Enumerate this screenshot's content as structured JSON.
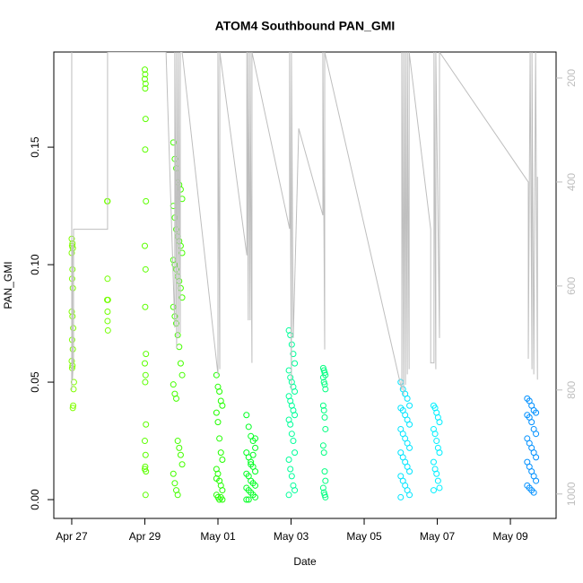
{
  "chart_data": {
    "type": "scatter",
    "title": "ATOM4 Southbound PAN_GMI",
    "xlabel": "Date",
    "ylabel": "PAN_GMI",
    "xlim": [
      -0.49,
      13.25
    ],
    "xticks": [
      {
        "value": 0,
        "label": "Apr 27"
      },
      {
        "value": 2,
        "label": "Apr 29"
      },
      {
        "value": 4,
        "label": "May 01"
      },
      {
        "value": 6,
        "label": "May 03"
      },
      {
        "value": 8,
        "label": "May 05"
      },
      {
        "value": 10,
        "label": "May 07"
      },
      {
        "value": 12,
        "label": "May 09"
      }
    ],
    "ylim": [
      -0.008,
      0.1905
    ],
    "yticks": [
      {
        "value": 0,
        "label": "0.00"
      },
      0.05,
      {
        "value": 0.1,
        "label": "0.10"
      },
      0.15
    ],
    "y2lim": [
      1047,
      150
    ],
    "y2ticks": [
      200,
      400,
      600,
      800,
      1000
    ],
    "series": [
      {
        "color": "#80ff00",
        "x": [
          0,
          0.02,
          0.01,
          0.03,
          0,
          0.02,
          0.01,
          0.03,
          0,
          0.02,
          0.04,
          0.01,
          0.03,
          0,
          0.02,
          0.01,
          0.04,
          0.03,
          0.05,
          0.06
        ],
        "values": [
          0.111,
          0.109,
          0.108,
          0.107,
          0.105,
          0.098,
          0.094,
          0.09,
          0.08,
          0.078,
          0.073,
          0.068,
          0.064,
          0.059,
          0.057,
          0.056,
          0.04,
          0.039,
          0.047,
          0.05
        ]
      },
      {
        "color": "#73ff00",
        "x": [
          0.97,
          0.98,
          0.98,
          0.97,
          0.99,
          0.98,
          0.98,
          0.99
        ],
        "values": [
          0.127,
          0.127,
          0.094,
          0.085,
          0.085,
          0.08,
          0.076,
          0.072
        ]
      },
      {
        "color": "#5cff00",
        "x": [
          2.0,
          2.01,
          2.0,
          2.02,
          2.01,
          2.02,
          2.01,
          2.03,
          2.0,
          2.02,
          2.01,
          2.03,
          2.0,
          2.02,
          2.01,
          2.03,
          2.0,
          2.02,
          2.01,
          2.0,
          2.03,
          2.02
        ],
        "values": [
          0.183,
          0.181,
          0.179,
          0.177,
          0.175,
          0.162,
          0.149,
          0.127,
          0.108,
          0.098,
          0.082,
          0.062,
          0.058,
          0.053,
          0.05,
          0.032,
          0.025,
          0.019,
          0.014,
          0.013,
          0.012,
          0.002
        ]
      },
      {
        "color": "#45ff00",
        "x": [
          2.78,
          2.82,
          2.86,
          2.9,
          2.94,
          2.98,
          3.02,
          2.78,
          2.82,
          2.86,
          2.9,
          2.94,
          2.98,
          3.02,
          2.78,
          2.82,
          2.86,
          2.9,
          2.94,
          2.98,
          3.02,
          2.78,
          2.82,
          2.86,
          2.9,
          2.94,
          2.98,
          3.02,
          2.78,
          2.82,
          2.86,
          2.9,
          2.94,
          2.98,
          3.02,
          2.78,
          2.82,
          2.86,
          2.9
        ],
        "values": [
          0.152,
          0.145,
          0.141,
          0.135,
          0.134,
          0.132,
          0.128,
          0.125,
          0.12,
          0.115,
          0.112,
          0.11,
          0.108,
          0.105,
          0.102,
          0.1,
          0.098,
          0.095,
          0.093,
          0.09,
          0.086,
          0.082,
          0.078,
          0.075,
          0.07,
          0.065,
          0.058,
          0.053,
          0.049,
          0.045,
          0.043,
          0.025,
          0.022,
          0.019,
          0.015,
          0.011,
          0.007,
          0.004,
          0.002
        ]
      },
      {
        "color": "#22ff00",
        "x": [
          3.96,
          4.0,
          4.04,
          4.08,
          4.12,
          3.96,
          4.0,
          4.04,
          4.08,
          4.12,
          3.96,
          4.0,
          4.04,
          4.08,
          4.12,
          3.96,
          4.0,
          4.04,
          4.08,
          4.12,
          3.96
        ],
        "values": [
          0.053,
          0.048,
          0.046,
          0.042,
          0.04,
          0.037,
          0.033,
          0.026,
          0.02,
          0.017,
          0.013,
          0.011,
          0.008,
          0.006,
          0.004,
          0.002,
          0.001,
          0.0,
          0.001,
          0.0,
          0.009
        ]
      },
      {
        "color": "#00ff22",
        "x": [
          4.78,
          4.84,
          4.9,
          4.96,
          5.02,
          4.78,
          4.84,
          4.9,
          4.96,
          5.02,
          4.78,
          4.84,
          4.9,
          4.96,
          5.02,
          4.78,
          4.84,
          4.9,
          4.96,
          5.02,
          4.78,
          4.84,
          4.9,
          4.96,
          5.02
        ],
        "values": [
          0.036,
          0.031,
          0.027,
          0.025,
          0.022,
          0.02,
          0.018,
          0.016,
          0.014,
          0.012,
          0.011,
          0.01,
          0.008,
          0.007,
          0.006,
          0.005,
          0.004,
          0.003,
          0.002,
          0.001,
          0.0,
          0.0,
          0.015,
          0.019,
          0.026
        ]
      },
      {
        "color": "#00ff9a",
        "x": [
          5.94,
          5.98,
          6.02,
          6.06,
          6.1,
          5.94,
          5.98,
          6.02,
          6.06,
          6.1,
          5.94,
          5.98,
          6.02,
          6.06,
          6.1,
          5.94,
          5.98,
          6.02,
          6.06,
          6.1,
          5.94,
          5.98,
          6.02,
          6.06,
          6.1,
          5.94
        ],
        "values": [
          0.072,
          0.07,
          0.066,
          0.062,
          0.058,
          0.055,
          0.052,
          0.05,
          0.048,
          0.046,
          0.044,
          0.042,
          0.04,
          0.038,
          0.036,
          0.034,
          0.032,
          0.028,
          0.025,
          0.02,
          0.017,
          0.013,
          0.01,
          0.006,
          0.004,
          0.002
        ]
      },
      {
        "color": "#00ff80",
        "x": [
          6.88,
          6.9,
          6.92,
          6.94,
          6.88,
          6.9,
          6.92,
          6.94,
          6.88,
          6.9,
          6.92,
          6.94,
          6.88,
          6.9,
          6.92,
          6.94,
          6.88,
          6.9,
          6.92,
          6.94
        ],
        "values": [
          0.056,
          0.055,
          0.054,
          0.053,
          0.052,
          0.05,
          0.049,
          0.047,
          0.04,
          0.038,
          0.035,
          0.03,
          0.023,
          0.02,
          0.012,
          0.008,
          0.005,
          0.003,
          0.002,
          0.001
        ]
      },
      {
        "color": "#00e5ff",
        "x": [
          9.0,
          9.06,
          9.12,
          9.18,
          9.24,
          9.0,
          9.06,
          9.12,
          9.18,
          9.24,
          9.0,
          9.06,
          9.12,
          9.18,
          9.24,
          9.0,
          9.06,
          9.12,
          9.18,
          9.24,
          9.0,
          9.06,
          9.12,
          9.18,
          9.24,
          9.0
        ],
        "values": [
          0.05,
          0.047,
          0.045,
          0.043,
          0.04,
          0.039,
          0.038,
          0.036,
          0.034,
          0.032,
          0.03,
          0.028,
          0.026,
          0.024,
          0.022,
          0.02,
          0.018,
          0.016,
          0.014,
          0.012,
          0.01,
          0.008,
          0.006,
          0.004,
          0.002,
          0.001
        ]
      },
      {
        "color": "#00f0ff",
        "x": [
          9.9,
          9.94,
          9.98,
          10.02,
          10.06,
          9.9,
          9.94,
          9.98,
          10.02,
          10.06,
          9.9,
          9.94,
          9.98,
          10.02,
          10.06,
          9.9
        ],
        "values": [
          0.04,
          0.039,
          0.037,
          0.035,
          0.033,
          0.03,
          0.028,
          0.025,
          0.022,
          0.02,
          0.016,
          0.013,
          0.011,
          0.008,
          0.005,
          0.004
        ]
      },
      {
        "color": "#0090ff",
        "x": [
          12.46,
          12.52,
          12.58,
          12.64,
          12.7,
          12.46,
          12.52,
          12.58,
          12.64,
          12.7,
          12.46,
          12.52,
          12.58,
          12.64,
          12.7,
          12.46,
          12.52,
          12.58,
          12.64,
          12.7,
          12.46,
          12.52,
          12.58,
          12.64
        ],
        "values": [
          0.043,
          0.042,
          0.04,
          0.038,
          0.037,
          0.036,
          0.035,
          0.033,
          0.03,
          0.028,
          0.026,
          0.024,
          0.022,
          0.02,
          0.018,
          0.016,
          0.014,
          0.012,
          0.01,
          0.008,
          0.006,
          0.005,
          0.004,
          0.003
        ]
      },
      {
        "type": "line",
        "axis": "y2",
        "color": "#bebebe",
        "x": [
          0,
          0,
          0.02,
          0.02,
          0.05,
          0.05,
          0.98,
          0.98,
          2.04,
          2.58,
          2.82,
          2.82,
          2.87,
          2.87,
          2.92,
          2.92,
          2.97,
          2.97,
          3.02,
          4.0,
          4.0,
          4.05,
          4.05,
          4.79,
          4.79,
          4.83,
          4.83,
          4.88,
          4.88,
          4.93,
          4.93,
          5.96,
          5.96,
          6.01,
          6.01,
          6.06,
          6.21,
          6.87,
          6.87,
          6.92,
          6.92,
          9.03,
          9.03,
          9.08,
          9.08,
          9.13,
          9.13,
          9.18,
          9.18,
          9.23,
          9.23,
          9.82,
          9.82,
          9.91,
          9.91,
          9.96,
          9.96,
          10.06,
          10.06,
          12.49,
          12.49,
          12.54,
          12.59,
          12.59,
          12.64,
          12.69,
          12.74,
          12.74
        ],
        "values": [
          150,
          800,
          520,
          780,
          736,
          491,
          491,
          150,
          150,
          150,
          680,
          150,
          720,
          150,
          700,
          150,
          690,
          150,
          150,
          770,
          150,
          760,
          150,
          541,
          150,
          666,
          150,
          666,
          150,
          748,
          150,
          490,
          150,
          800,
          150,
          700,
          297,
          464,
          150,
          722,
          150,
          800,
          150,
          810,
          150,
          790,
          150,
          770,
          150,
          760,
          150,
          491,
          748,
          748,
          150,
          760,
          150,
          700,
          150,
          400,
          740,
          150,
          760,
          150,
          770,
          150,
          780,
          390
        ]
      }
    ]
  }
}
